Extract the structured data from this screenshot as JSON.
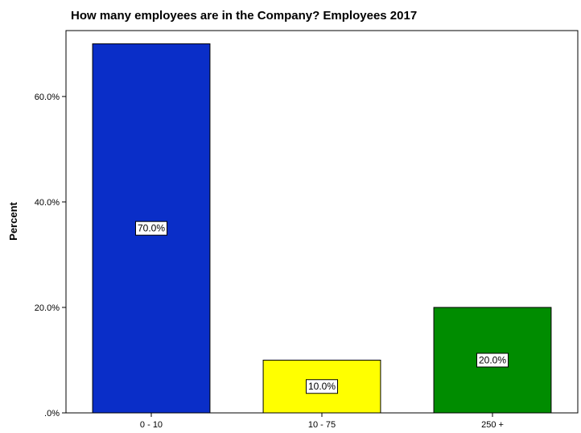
{
  "chart_data": {
    "type": "bar",
    "title": "How many employees are in the Company? Employees 2017",
    "xlabel": "",
    "ylabel": "Percent",
    "ylim": [
      0,
      72.5
    ],
    "yticks": [
      {
        "value": 0,
        "label": ".0%"
      },
      {
        "value": 20,
        "label": "20.0%"
      },
      {
        "value": 40,
        "label": "40.0%"
      },
      {
        "value": 60,
        "label": "60.0%"
      }
    ],
    "categories": [
      "0 - 10",
      "10 - 75",
      "250 +"
    ],
    "values": [
      70.0,
      10.0,
      20.0
    ],
    "data_labels": [
      "70.0%",
      "10.0%",
      "20.0%"
    ],
    "bar_colors": [
      "#0a2ec8",
      "#ffff00",
      "#008c00"
    ],
    "grid": false,
    "legend": "none"
  }
}
